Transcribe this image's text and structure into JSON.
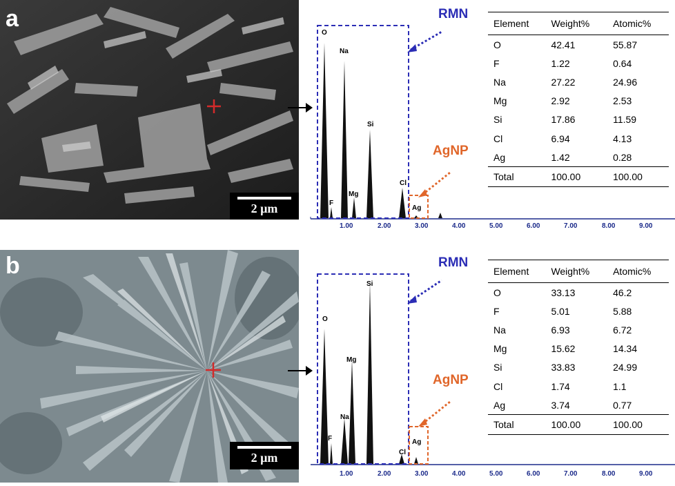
{
  "panels": [
    {
      "letter": "a",
      "scale_label": "2 µm",
      "rmn_label": "RMN",
      "agnp_label": "AgNP",
      "peaks": [
        "O",
        "Na",
        "Mg",
        "Si",
        "Cl",
        "F",
        "Ag"
      ],
      "axis_ticks": [
        "1.00",
        "2.00",
        "3.00",
        "4.00",
        "5.00",
        "6.00",
        "7.00",
        "8.00",
        "9.00"
      ],
      "table": {
        "headers": [
          "Element",
          "Weight%",
          "Atomic%"
        ],
        "rows": [
          [
            "O",
            "42.41",
            "55.87"
          ],
          [
            "F",
            "1.22",
            "0.64"
          ],
          [
            "Na",
            "27.22",
            "24.96"
          ],
          [
            "Mg",
            "2.92",
            "2.53"
          ],
          [
            "Si",
            "17.86",
            "11.59"
          ],
          [
            "Cl",
            "6.94",
            "4.13"
          ],
          [
            "Ag",
            "1.42",
            "0.28"
          ],
          [
            "Total",
            "100.00",
            "100.00"
          ]
        ]
      }
    },
    {
      "letter": "b",
      "scale_label": "2 µm",
      "rmn_label": "RMN",
      "agnp_label": "AgNP",
      "peaks": [
        "O",
        "Si",
        "Mg",
        "Na",
        "F",
        "Cl",
        "Ag"
      ],
      "axis_ticks": [
        "1.00",
        "2.00",
        "3.00",
        "4.00",
        "5.00",
        "6.00",
        "7.00",
        "8.00",
        "9.00"
      ],
      "table": {
        "headers": [
          "Element",
          "Weight%",
          "Atomic%"
        ],
        "rows": [
          [
            "O",
            "33.13",
            "46.2"
          ],
          [
            "F",
            "5.01",
            "5.88"
          ],
          [
            "Na",
            "6.93",
            "6.72"
          ],
          [
            "Mg",
            "15.62",
            "14.34"
          ],
          [
            "Si",
            "33.83",
            "24.99"
          ],
          [
            "Cl",
            "1.74",
            "1.1"
          ],
          [
            "Ag",
            "3.74",
            "0.77"
          ],
          [
            "Total",
            "100.00",
            "100.00"
          ]
        ]
      }
    }
  ],
  "colors": {
    "rmn": "#2b2db5",
    "agnp": "#e0662a",
    "marker": "#d42a2a"
  }
}
